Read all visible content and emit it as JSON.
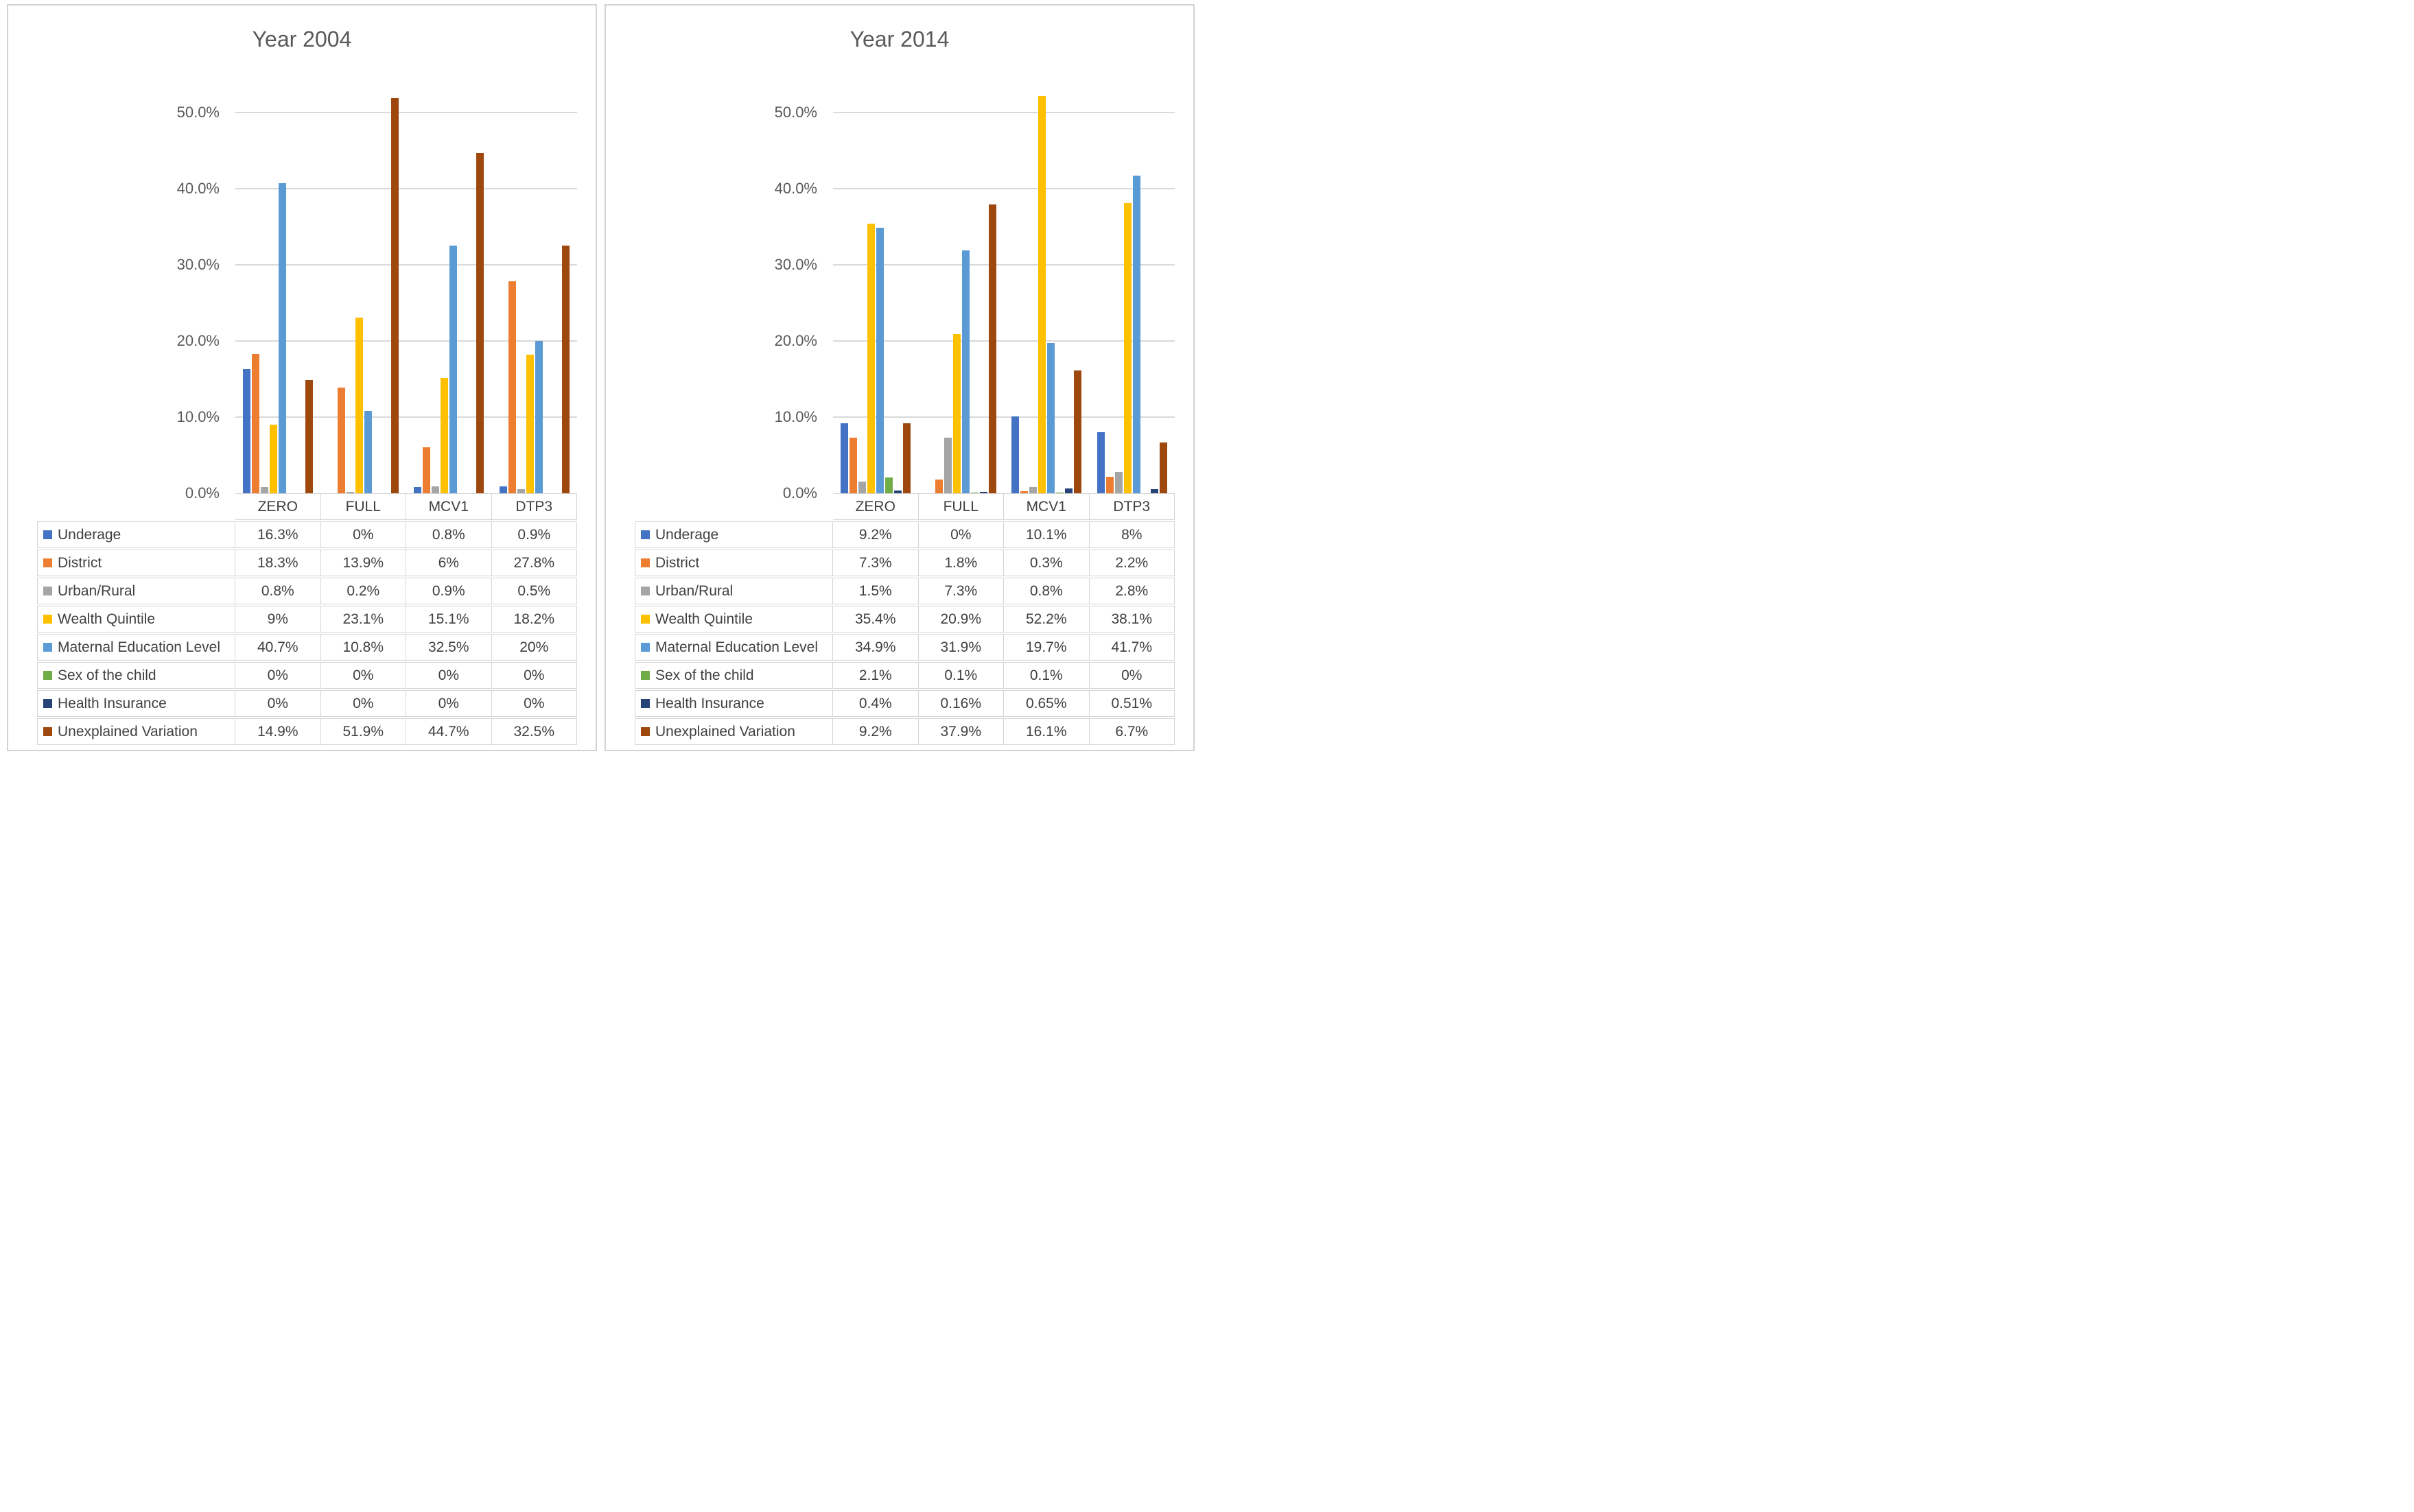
{
  "chart_data": [
    {
      "type": "bar",
      "title": "Year 2004",
      "categories": [
        "ZERO",
        "FULL",
        "MCV1",
        "DTP3"
      ],
      "xlabel": "",
      "ylabel": "",
      "ylim": [
        0,
        50
      ],
      "y_tick_labels": [
        "50.0%",
        "40.0%",
        "30.0%",
        "20.0%",
        "10.0%",
        "0.0%"
      ],
      "grid": true,
      "legend_position": "data-table-left",
      "series": [
        {
          "name": "Underage",
          "color": "#4472C4",
          "values": [
            16.3,
            0,
            0.8,
            0.9
          ],
          "display": [
            "16.3%",
            "0%",
            "0.8%",
            "0.9%"
          ]
        },
        {
          "name": "District",
          "color": "#ED7D31",
          "values": [
            18.3,
            13.9,
            6,
            27.8
          ],
          "display": [
            "18.3%",
            "13.9%",
            "6%",
            "27.8%"
          ]
        },
        {
          "name": "Urban/Rural",
          "color": "#A5A5A5",
          "values": [
            0.8,
            0.2,
            0.9,
            0.5
          ],
          "display": [
            "0.8%",
            "0.2%",
            "0.9%",
            "0.5%"
          ]
        },
        {
          "name": "Wealth Quintile",
          "color": "#FFC000",
          "values": [
            9,
            23.1,
            15.1,
            18.2
          ],
          "display": [
            "9%",
            "23.1%",
            "15.1%",
            "18.2%"
          ]
        },
        {
          "name": "Maternal Education Level",
          "color": "#5B9BD5",
          "values": [
            40.7,
            10.8,
            32.5,
            20
          ],
          "display": [
            "40.7%",
            "10.8%",
            "32.5%",
            "20%"
          ]
        },
        {
          "name": "Sex of the child",
          "color": "#70AD47",
          "values": [
            0,
            0,
            0,
            0
          ],
          "display": [
            "0%",
            "0%",
            "0%",
            "0%"
          ]
        },
        {
          "name": "Health Insurance",
          "color": "#264478",
          "values": [
            0,
            0,
            0,
            0
          ],
          "display": [
            "0%",
            "0%",
            "0%",
            "0%"
          ]
        },
        {
          "name": "Unexplained Variation",
          "color": "#9E480E",
          "values": [
            14.9,
            51.9,
            44.7,
            32.5
          ],
          "display": [
            "14.9%",
            "51.9%",
            "44.7%",
            "32.5%"
          ]
        }
      ]
    },
    {
      "type": "bar",
      "title": "Year 2014",
      "categories": [
        "ZERO",
        "FULL",
        "MCV1",
        "DTP3"
      ],
      "xlabel": "",
      "ylabel": "",
      "ylim": [
        0,
        50
      ],
      "y_tick_labels": [
        "50.0%",
        "40.0%",
        "30.0%",
        "20.0%",
        "10.0%",
        "0.0%"
      ],
      "grid": true,
      "legend_position": "data-table-left",
      "series": [
        {
          "name": "Underage",
          "color": "#4472C4",
          "values": [
            9.2,
            0,
            10.1,
            8
          ],
          "display": [
            "9.2%",
            "0%",
            "10.1%",
            "8%"
          ]
        },
        {
          "name": "District",
          "color": "#ED7D31",
          "values": [
            7.3,
            1.8,
            0.3,
            2.2
          ],
          "display": [
            "7.3%",
            "1.8%",
            "0.3%",
            "2.2%"
          ]
        },
        {
          "name": "Urban/Rural",
          "color": "#A5A5A5",
          "values": [
            1.5,
            7.3,
            0.8,
            2.8
          ],
          "display": [
            "1.5%",
            "7.3%",
            "0.8%",
            "2.8%"
          ]
        },
        {
          "name": "Wealth Quintile",
          "color": "#FFC000",
          "values": [
            35.4,
            20.9,
            52.2,
            38.1
          ],
          "display": [
            "35.4%",
            "20.9%",
            "52.2%",
            "38.1%"
          ]
        },
        {
          "name": "Maternal Education Level",
          "color": "#5B9BD5",
          "values": [
            34.9,
            31.9,
            19.7,
            41.7
          ],
          "display": [
            "34.9%",
            "31.9%",
            "19.7%",
            "41.7%"
          ]
        },
        {
          "name": "Sex of the child",
          "color": "#70AD47",
          "values": [
            2.1,
            0.1,
            0.1,
            0
          ],
          "display": [
            "2.1%",
            "0.1%",
            "0.1%",
            "0%"
          ]
        },
        {
          "name": "Health Insurance",
          "color": "#264478",
          "values": [
            0.4,
            0.16,
            0.65,
            0.51
          ],
          "display": [
            "0.4%",
            "0.16%",
            "0.65%",
            "0.51%"
          ]
        },
        {
          "name": "Unexplained Variation",
          "color": "#9E480E",
          "values": [
            9.2,
            37.9,
            16.1,
            6.7
          ],
          "display": [
            "9.2%",
            "37.9%",
            "16.1%",
            "6.7%"
          ]
        }
      ]
    }
  ],
  "style": {
    "gridline_color": "#d9d9d9",
    "panel_border_color": "#d2d2d2",
    "axis_text_color": "#595959",
    "table_text_color": "#404040"
  }
}
